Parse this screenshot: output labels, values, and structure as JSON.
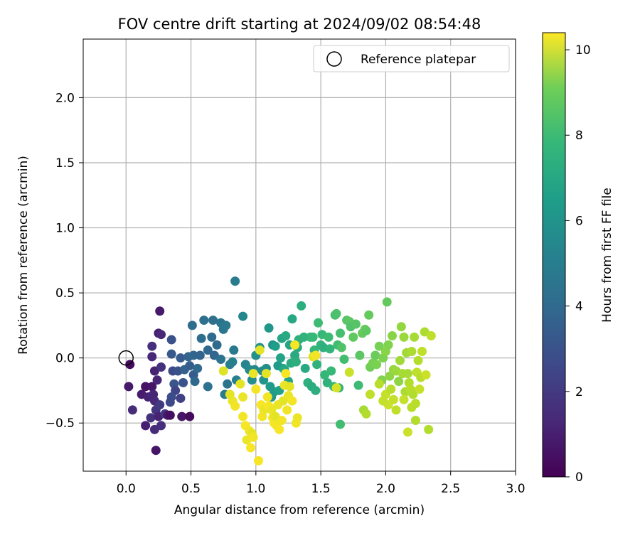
{
  "chart_data": {
    "type": "scatter",
    "title": "FOV centre drift starting at 2024/09/02 08:54:48",
    "xlabel": "Angular distance from reference (arcmin)",
    "ylabel": "Rotation from reference (arcmin)",
    "xlim": [
      -0.33,
      3.0
    ],
    "ylim": [
      -0.87,
      2.45
    ],
    "xticks": [
      0.0,
      0.5,
      1.0,
      1.5,
      2.0,
      2.5,
      3.0
    ],
    "xtick_labels": [
      "0.0",
      "0.5",
      "1.0",
      "1.5",
      "2.0",
      "2.5",
      "3.0"
    ],
    "yticks": [
      -0.5,
      0.0,
      0.5,
      1.0,
      1.5,
      2.0
    ],
    "ytick_labels": [
      "−0.5",
      "0.0",
      "0.5",
      "1.0",
      "1.5",
      "2.0"
    ],
    "grid": true,
    "legend": {
      "position": "top-right",
      "entries": [
        "Reference platepar"
      ]
    },
    "reference_point": {
      "x": 0.0,
      "y": 0.0
    },
    "colorbar": {
      "label": "Hours from first FF file",
      "range": [
        0,
        10.4
      ],
      "ticks": [
        0,
        2,
        4,
        6,
        8,
        10
      ],
      "colormap": "viridis"
    },
    "points": [
      [
        0.03,
        -0.05,
        0.3
      ],
      [
        0.02,
        -0.22,
        0.7
      ],
      [
        0.05,
        -0.4,
        1.3
      ],
      [
        0.12,
        -0.28,
        0.8
      ],
      [
        0.15,
        -0.22,
        0.5
      ],
      [
        0.17,
        -0.3,
        1.0
      ],
      [
        0.15,
        -0.52,
        0.9
      ],
      [
        0.19,
        -0.46,
        1.5
      ],
      [
        0.2,
        -0.22,
        0.6
      ],
      [
        0.21,
        -0.28,
        1.1
      ],
      [
        0.22,
        -0.33,
        1.2
      ],
      [
        0.23,
        -0.4,
        1.6
      ],
      [
        0.22,
        -0.55,
        1.3
      ],
      [
        0.23,
        -0.71,
        0.6
      ],
      [
        0.25,
        -0.45,
        1.0
      ],
      [
        0.26,
        -0.36,
        1.8
      ],
      [
        0.27,
        -0.52,
        1.4
      ],
      [
        0.3,
        -0.43,
        1.7
      ],
      [
        0.32,
        -0.44,
        0.7
      ],
      [
        0.34,
        -0.44,
        0.4
      ],
      [
        0.2,
        0.01,
        1.2
      ],
      [
        0.22,
        -0.1,
        1.0
      ],
      [
        0.24,
        -0.17,
        1.1
      ],
      [
        0.25,
        0.19,
        0.9
      ],
      [
        0.26,
        0.36,
        0.7
      ],
      [
        0.27,
        0.18,
        1.2
      ],
      [
        0.27,
        -0.07,
        1.5
      ],
      [
        0.2,
        0.09,
        1.4
      ],
      [
        0.36,
        -0.1,
        2.4
      ],
      [
        0.4,
        -0.1,
        2.6
      ],
      [
        0.37,
        -0.2,
        2.8
      ],
      [
        0.38,
        -0.25,
        2.2
      ],
      [
        0.44,
        -0.19,
        2.7
      ],
      [
        0.35,
        -0.3,
        2.5
      ],
      [
        0.34,
        -0.34,
        2.3
      ],
      [
        0.42,
        -0.31,
        2.0
      ],
      [
        0.43,
        -0.45,
        0.6
      ],
      [
        0.49,
        -0.45,
        0.3
      ],
      [
        0.35,
        0.03,
        2.9
      ],
      [
        0.35,
        0.14,
        2.6
      ],
      [
        0.42,
        0.0,
        3.0
      ],
      [
        0.45,
        -0.09,
        3.2
      ],
      [
        0.48,
        0.01,
        3.3
      ],
      [
        0.49,
        -0.06,
        3.1
      ],
      [
        0.52,
        0.02,
        3.4
      ],
      [
        0.52,
        -0.13,
        3.0
      ],
      [
        0.53,
        -0.18,
        3.5
      ],
      [
        0.55,
        -0.08,
        3.6
      ],
      [
        0.57,
        0.02,
        3.3
      ],
      [
        0.58,
        0.15,
        3.7
      ],
      [
        0.6,
        0.29,
        3.8
      ],
      [
        0.63,
        0.06,
        3.5
      ],
      [
        0.63,
        -0.22,
        3.9
      ],
      [
        0.66,
        0.16,
        3.6
      ],
      [
        0.67,
        0.29,
        3.8
      ],
      [
        0.68,
        0.02,
        3.4
      ],
      [
        0.51,
        0.25,
        3.7
      ],
      [
        0.7,
        0.1,
        3.6
      ],
      [
        0.73,
        -0.01,
        3.9
      ],
      [
        0.73,
        0.27,
        4.0
      ],
      [
        0.75,
        0.22,
        4.1
      ],
      [
        0.77,
        0.25,
        4.2
      ],
      [
        0.78,
        -0.2,
        4.0
      ],
      [
        0.76,
        -0.28,
        4.3
      ],
      [
        0.8,
        -0.05,
        4.4
      ],
      [
        0.82,
        -0.03,
        4.5
      ],
      [
        0.83,
        0.06,
        4.2
      ],
      [
        0.85,
        -0.17,
        4.6
      ],
      [
        0.84,
        0.59,
        4.3
      ],
      [
        0.9,
        0.32,
        4.8
      ],
      [
        0.92,
        -0.05,
        4.7
      ],
      [
        0.95,
        -0.09,
        5.0
      ],
      [
        0.97,
        -0.17,
        5.1
      ],
      [
        0.99,
        -0.09,
        4.9
      ],
      [
        1.0,
        0.02,
        5.2
      ],
      [
        1.03,
        0.08,
        5.3
      ],
      [
        1.05,
        -0.1,
        5.0
      ],
      [
        1.06,
        -0.17,
        5.4
      ],
      [
        1.08,
        -0.08,
        5.1
      ],
      [
        1.1,
        0.23,
        5.5
      ],
      [
        1.11,
        -0.22,
        5.6
      ],
      [
        1.12,
        -0.3,
        5.4
      ],
      [
        1.13,
        0.1,
        5.3
      ],
      [
        1.14,
        -0.26,
        5.7
      ],
      [
        1.15,
        0.09,
        5.8
      ],
      [
        1.17,
        -0.06,
        5.6
      ],
      [
        1.18,
        -0.25,
        5.9
      ],
      [
        1.19,
        0.0,
        6.0
      ],
      [
        1.2,
        0.15,
        6.1
      ],
      [
        1.21,
        -0.08,
        5.9
      ],
      [
        1.22,
        -0.09,
        6.2
      ],
      [
        1.23,
        0.17,
        6.3
      ],
      [
        1.25,
        -0.18,
        6.0
      ],
      [
        1.26,
        0.1,
        6.1
      ],
      [
        1.27,
        -0.04,
        6.4
      ],
      [
        1.28,
        0.3,
        6.2
      ],
      [
        1.3,
        0.02,
        6.3
      ],
      [
        1.31,
        -0.03,
        6.5
      ],
      [
        1.32,
        0.08,
        6.4
      ],
      [
        1.33,
        0.14,
        6.6
      ],
      [
        1.35,
        0.4,
        6.5
      ],
      [
        1.37,
        0.16,
        6.7
      ],
      [
        1.38,
        -0.08,
        6.3
      ],
      [
        1.4,
        -0.19,
        6.6
      ],
      [
        1.42,
        0.16,
        6.8
      ],
      [
        1.43,
        -0.22,
        6.4
      ],
      [
        1.44,
        0.16,
        7.0
      ],
      [
        1.45,
        0.06,
        6.9
      ],
      [
        1.46,
        -0.25,
        6.5
      ],
      [
        1.47,
        -0.05,
        6.7
      ],
      [
        1.48,
        0.27,
        7.1
      ],
      [
        1.5,
        0.1,
        6.8
      ],
      [
        1.51,
        0.18,
        7.0
      ],
      [
        1.52,
        0.08,
        6.6
      ],
      [
        1.53,
        -0.13,
        6.9
      ],
      [
        1.55,
        -0.19,
        6.7
      ],
      [
        1.56,
        0.16,
        7.1
      ],
      [
        1.57,
        0.07,
        6.8
      ],
      [
        1.58,
        -0.1,
        7.0
      ],
      [
        1.6,
        -0.22,
        6.9
      ],
      [
        1.61,
        0.33,
        7.3
      ],
      [
        1.62,
        0.34,
        7.4
      ],
      [
        1.63,
        0.1,
        7.2
      ],
      [
        1.64,
        -0.23,
        6.8
      ],
      [
        1.65,
        0.19,
        7.3
      ],
      [
        1.66,
        0.08,
        7.5
      ],
      [
        1.68,
        -0.01,
        7.2
      ],
      [
        1.7,
        0.29,
        7.6
      ],
      [
        1.72,
        0.28,
        7.7
      ],
      [
        1.73,
        0.24,
        7.5
      ],
      [
        1.75,
        0.16,
        7.8
      ],
      [
        1.77,
        0.26,
        7.6
      ],
      [
        1.79,
        -0.21,
        7.1
      ],
      [
        1.8,
        0.02,
        7.7
      ],
      [
        1.82,
        0.19,
        7.9
      ],
      [
        1.84,
        0.22,
        8.0
      ],
      [
        1.85,
        0.21,
        7.8
      ],
      [
        1.87,
        0.33,
        7.9
      ],
      [
        1.88,
        -0.07,
        8.1
      ],
      [
        1.9,
        -0.04,
        8.2
      ],
      [
        1.92,
        0.02,
        8.0
      ],
      [
        1.93,
        -0.05,
        8.3
      ],
      [
        1.95,
        0.09,
        8.2
      ],
      [
        1.97,
        -0.17,
        8.4
      ],
      [
        1.98,
        0.0,
        8.3
      ],
      [
        2.0,
        0.05,
        8.5
      ],
      [
        2.01,
        0.43,
        7.9
      ],
      [
        2.02,
        0.1,
        8.4
      ],
      [
        2.03,
        -0.14,
        8.6
      ],
      [
        2.05,
        0.17,
        8.5
      ],
      [
        2.06,
        -0.09,
        8.7
      ],
      [
        2.08,
        -0.1,
        8.8
      ],
      [
        2.1,
        -0.18,
        8.6
      ],
      [
        2.11,
        -0.02,
        8.9
      ],
      [
        2.12,
        0.24,
        8.7
      ],
      [
        2.13,
        -0.12,
        9.0
      ],
      [
        2.14,
        0.16,
        8.8
      ],
      [
        2.15,
        -0.26,
        9.1
      ],
      [
        2.16,
        0.04,
        8.9
      ],
      [
        2.17,
        -0.12,
        9.0
      ],
      [
        2.18,
        -0.19,
        9.2
      ],
      [
        2.19,
        -0.24,
        9.3
      ],
      [
        2.2,
        0.05,
        9.1
      ],
      [
        2.21,
        -0.28,
        9.2
      ],
      [
        2.22,
        0.16,
        9.0
      ],
      [
        2.23,
        -0.35,
        9.3
      ],
      [
        2.24,
        -0.11,
        9.4
      ],
      [
        2.25,
        -0.02,
        9.2
      ],
      [
        2.26,
        -0.24,
        9.5
      ],
      [
        2.27,
        -0.15,
        9.3
      ],
      [
        2.28,
        0.05,
        9.4
      ],
      [
        2.3,
        0.2,
        9.1
      ],
      [
        2.31,
        -0.13,
        9.6
      ],
      [
        2.33,
        -0.55,
        9.2
      ],
      [
        2.35,
        0.17,
        9.4
      ],
      [
        2.0,
        -0.28,
        9.5
      ],
      [
        2.02,
        -0.36,
        9.6
      ],
      [
        2.04,
        -0.24,
        9.3
      ],
      [
        2.06,
        -0.32,
        9.5
      ],
      [
        2.08,
        -0.4,
        9.4
      ],
      [
        2.14,
        -0.32,
        9.5
      ],
      [
        2.17,
        -0.57,
        9.6
      ],
      [
        2.2,
        -0.38,
        9.3
      ],
      [
        2.23,
        -0.48,
        9.2
      ],
      [
        1.83,
        -0.4,
        9.0
      ],
      [
        1.85,
        -0.43,
        9.2
      ],
      [
        1.88,
        -0.28,
        9.4
      ],
      [
        1.95,
        -0.2,
        9.3
      ],
      [
        1.98,
        -0.33,
        9.5
      ],
      [
        1.72,
        -0.11,
        9.6
      ],
      [
        1.62,
        -0.23,
        9.8
      ],
      [
        1.65,
        -0.51,
        7.2
      ],
      [
        0.75,
        -0.1,
        9.9
      ],
      [
        0.8,
        -0.28,
        10.0
      ],
      [
        0.82,
        -0.33,
        10.1
      ],
      [
        0.84,
        -0.37,
        10.2
      ],
      [
        0.88,
        -0.2,
        10.0
      ],
      [
        0.9,
        -0.3,
        10.1
      ],
      [
        0.9,
        -0.45,
        10.2
      ],
      [
        0.92,
        -0.52,
        10.3
      ],
      [
        0.93,
        -0.63,
        10.1
      ],
      [
        0.95,
        -0.56,
        10.2
      ],
      [
        0.96,
        -0.69,
        10.3
      ],
      [
        0.97,
        -0.58,
        10.0
      ],
      [
        0.98,
        -0.61,
        10.2
      ],
      [
        0.98,
        -0.12,
        10.1
      ],
      [
        1.0,
        -0.24,
        10.2
      ],
      [
        1.02,
        -0.79,
        10.3
      ],
      [
        1.03,
        0.06,
        10.0
      ],
      [
        1.04,
        -0.36,
        10.3
      ],
      [
        1.05,
        -0.45,
        10.2
      ],
      [
        1.06,
        -0.4,
        10.1
      ],
      [
        1.08,
        -0.12,
        10.0
      ],
      [
        1.09,
        -0.3,
        10.2
      ],
      [
        1.1,
        -0.37,
        10.3
      ],
      [
        1.12,
        -0.4,
        10.1
      ],
      [
        1.13,
        -0.46,
        10.2
      ],
      [
        1.14,
        -0.5,
        10.3
      ],
      [
        1.15,
        -0.45,
        10.0
      ],
      [
        1.16,
        -0.52,
        10.2
      ],
      [
        1.17,
        -0.36,
        10.1
      ],
      [
        1.18,
        -0.55,
        10.3
      ],
      [
        1.2,
        -0.48,
        10.2
      ],
      [
        1.21,
        -0.33,
        10.0
      ],
      [
        1.22,
        -0.21,
        10.1
      ],
      [
        1.23,
        -0.12,
        10.3
      ],
      [
        1.24,
        -0.4,
        10.2
      ],
      [
        1.25,
        -0.29,
        10.1
      ],
      [
        1.26,
        -0.22,
        10.0
      ],
      [
        1.28,
        -0.33,
        10.2
      ],
      [
        1.3,
        0.1,
        10.3
      ],
      [
        1.31,
        -0.5,
        10.2
      ],
      [
        1.32,
        -0.46,
        10.1
      ],
      [
        1.44,
        0.01,
        10.0
      ],
      [
        1.46,
        0.02,
        10.2
      ]
    ]
  }
}
